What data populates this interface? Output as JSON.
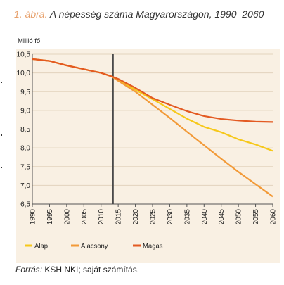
{
  "figure": {
    "number_label": "1. ábra.",
    "title": "A népesség száma Magyarországon, 1990–2060",
    "unit_label": "Millió fő",
    "source_label": "Forrás:",
    "source_text": "KSH NKI; saját számítás."
  },
  "colors": {
    "panel_background": "#f9f0e3",
    "grid": "#e2d3bd",
    "Alap": "#f6c81a",
    "Alacsony": "#f29a38",
    "Magas": "#e35a22",
    "divider": "#4a4a4a"
  },
  "chart_data": {
    "type": "line",
    "title": "A népesség száma Magyarországon, 1990–2060",
    "xlabel": "",
    "ylabel": "Millió fő",
    "xlim": [
      1990,
      2060
    ],
    "ylim": [
      6.5,
      10.5
    ],
    "x_ticks": [
      1990,
      1995,
      2000,
      2005,
      2010,
      2015,
      2020,
      2025,
      2030,
      2035,
      2040,
      2045,
      2050,
      2055,
      2060
    ],
    "y_ticks": [
      6.5,
      7.0,
      7.5,
      8.0,
      8.5,
      9.0,
      9.5,
      10.0,
      10.5
    ],
    "y_tick_labels": [
      "6,5",
      "7,0",
      "7,5",
      "8,0",
      "8,5",
      "9,0",
      "9,5",
      "10,0",
      "10,5"
    ],
    "grid": true,
    "legend_position": "bottom-left",
    "vertical_marker_x": 2013.5,
    "series": [
      {
        "name": "Alap",
        "x": [
          1990,
          1995,
          2000,
          2005,
          2010,
          2013,
          2015,
          2020,
          2025,
          2030,
          2035,
          2040,
          2045,
          2050,
          2055,
          2060
        ],
        "y": [
          10.37,
          10.32,
          10.2,
          10.1,
          10.0,
          9.91,
          9.82,
          9.55,
          9.3,
          9.04,
          8.78,
          8.56,
          8.42,
          8.23,
          8.09,
          7.92
        ]
      },
      {
        "name": "Alacsony",
        "x": [
          1990,
          1995,
          2000,
          2005,
          2010,
          2013,
          2015,
          2020,
          2025,
          2030,
          2035,
          2040,
          2045,
          2050,
          2055,
          2060
        ],
        "y": [
          10.37,
          10.32,
          10.2,
          10.1,
          10.0,
          9.91,
          9.79,
          9.5,
          9.15,
          8.8,
          8.43,
          8.07,
          7.71,
          7.36,
          7.03,
          6.7
        ]
      },
      {
        "name": "Magas",
        "x": [
          1990,
          1995,
          2000,
          2005,
          2010,
          2013,
          2015,
          2020,
          2025,
          2030,
          2035,
          2040,
          2045,
          2050,
          2055,
          2060
        ],
        "y": [
          10.37,
          10.32,
          10.2,
          10.1,
          10.0,
          9.91,
          9.84,
          9.6,
          9.33,
          9.15,
          8.98,
          8.85,
          8.77,
          8.73,
          8.7,
          8.69
        ]
      }
    ]
  }
}
